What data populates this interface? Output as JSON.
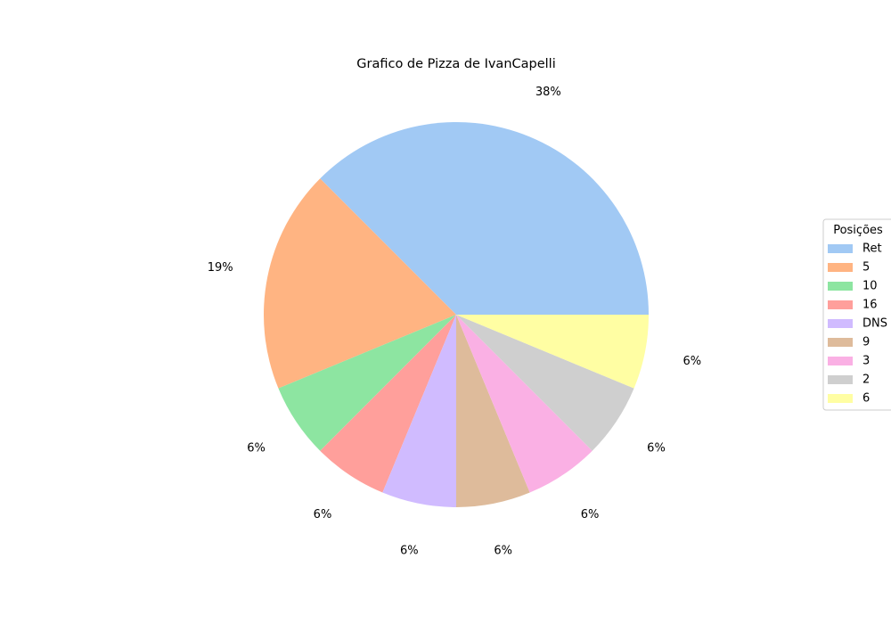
{
  "chart_data": {
    "type": "pie",
    "title": "Grafico de Pizza de IvanCapelli",
    "categories": [
      "Ret",
      "5",
      "10",
      "16",
      "DNS",
      "9",
      "3",
      "2",
      "6"
    ],
    "values": [
      6,
      3,
      1,
      1,
      1,
      1,
      1,
      1,
      1
    ],
    "percent_labels": [
      "38%",
      "19%",
      "6%",
      "6%",
      "6%",
      "6%",
      "6%",
      "6%",
      "6%"
    ],
    "colors": [
      "#a1c9f4",
      "#ffb482",
      "#8de5a1",
      "#ff9f9b",
      "#d0bbff",
      "#debb9b",
      "#fab0e4",
      "#cfcfcf",
      "#fffea3"
    ],
    "start_angle_deg": 0,
    "direction": "counterclockwise",
    "legend": {
      "title": "Posições",
      "placement": "center-right"
    }
  }
}
